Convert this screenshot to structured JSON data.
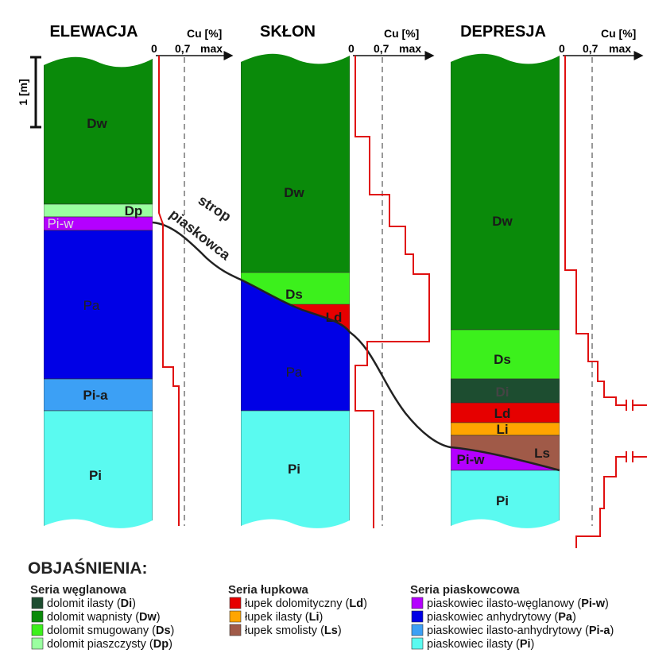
{
  "columns": [
    {
      "title": "ELEWACJA",
      "axis_label": "Cu [%]",
      "ticks": [
        "0",
        "0,7",
        "max"
      ],
      "layers": [
        "Dw",
        "Dp",
        "Pi-w",
        "Pa",
        "Pi-a",
        "Pi"
      ]
    },
    {
      "title": "SKŁON",
      "axis_label": "Cu [%]",
      "ticks": [
        "0",
        "0,7",
        "max"
      ],
      "layers": [
        "Dw",
        "Ds",
        "Ld",
        "Pa",
        "Pi"
      ]
    },
    {
      "title": "DEPRESJA",
      "axis_label": "Cu [%]",
      "ticks": [
        "0",
        "0,7",
        "max"
      ],
      "layers": [
        "Dw",
        "Ds",
        "Di",
        "Ld",
        "Li",
        "Ls",
        "Pi-w",
        "Pi"
      ]
    }
  ],
  "scale_label": "1 [m]",
  "boundary_label": [
    "strop",
    "piaskowca"
  ],
  "legend": {
    "title": "OBJAŚNIENIA:",
    "groups": [
      {
        "title": "Seria węglanowa",
        "items": [
          {
            "prefix": "dolomit ilasty (",
            "code": "Di",
            "suffix": ")",
            "color": "#1d4d30"
          },
          {
            "prefix": "dolomit wapnisty (",
            "code": "Dw",
            "suffix": ")",
            "color": "#0a8a0a"
          },
          {
            "prefix": "dolomit smugowany (",
            "code": "Ds",
            "suffix": ")",
            "color": "#3cf01c"
          },
          {
            "prefix": "dolomit piaszczysty (",
            "code": "Dp",
            "suffix": ")",
            "color": "#9affa0"
          }
        ]
      },
      {
        "title": "Seria łupkowa",
        "items": [
          {
            "prefix": "łupek dolomityczny (",
            "code": "Ld",
            "suffix": ")",
            "color": "#e60000"
          },
          {
            "prefix": "łupek ilasty (",
            "code": "Li",
            "suffix": ")",
            "color": "#ffa500"
          },
          {
            "prefix": "łupek smolisty (",
            "code": "Ls",
            "suffix": ")",
            "color": "#a05a48"
          }
        ]
      },
      {
        "title": "Seria piaskowcowa",
        "items": [
          {
            "prefix": "piaskowiec ilasto-węglanowy (",
            "code": "Pi-w",
            "suffix": ")",
            "color": "#b400ff"
          },
          {
            "prefix": "piaskowiec anhydrytowy (",
            "code": "Pa",
            "suffix": ")",
            "color": "#0000e6"
          },
          {
            "prefix": "piaskowiec ilasto-anhydrytowy (",
            "code": "Pi-a",
            "suffix": ")",
            "color": "#3ca0f5"
          },
          {
            "prefix": "piaskowiec ilasty (",
            "code": "Pi",
            "suffix": ")",
            "color": "#5afaf0"
          }
        ]
      }
    ]
  }
}
